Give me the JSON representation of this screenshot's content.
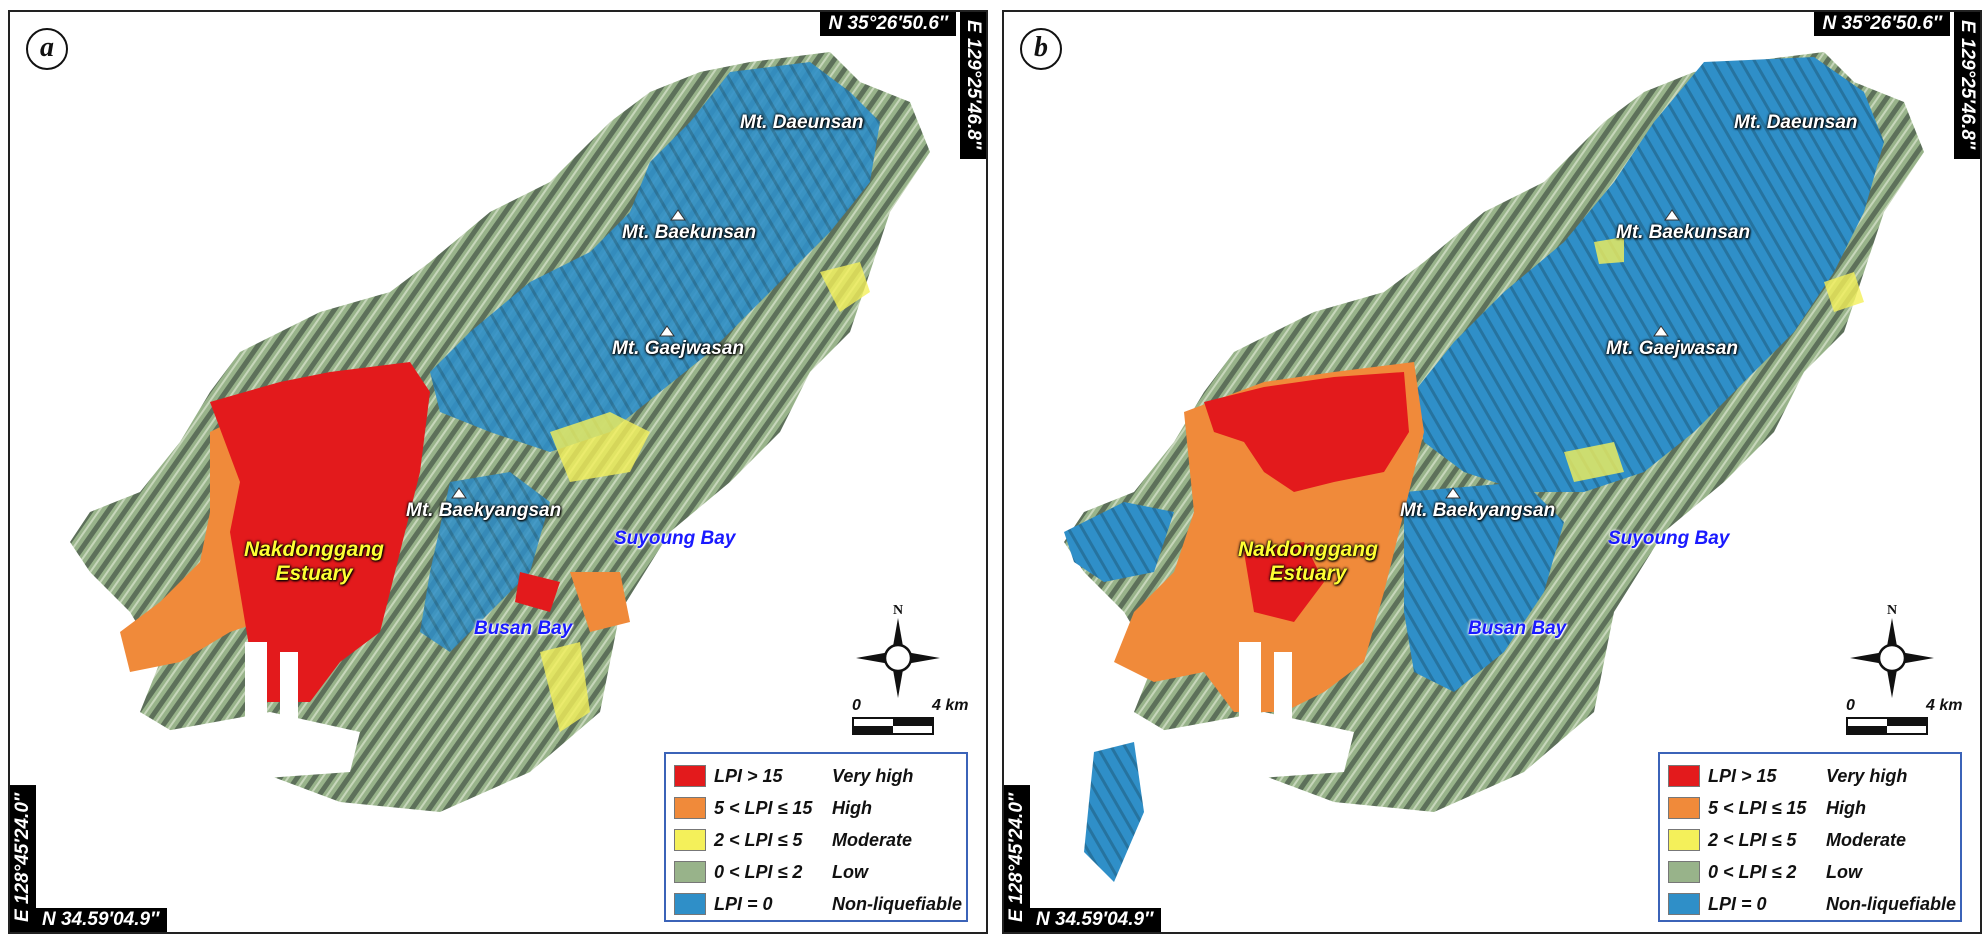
{
  "coordinates": {
    "top": "N 35°26′50.6″",
    "right": "E 129°25′46.8″",
    "left": "E 128°45′24.0″",
    "bottom": "N 34.59′04.9″"
  },
  "places": {
    "mt_daeunsan": "Mt. Daeunsan",
    "mt_baekunsan": "Mt. Baekunsan",
    "mt_gaejwasan": "Mt. Gaejwasan",
    "mt_baekyangsan": "Mt. Baekyangsan",
    "estuary_line1": "Nakdonggang",
    "estuary_line2": "Estuary",
    "suyoung_bay": "Suyoung Bay",
    "busan_bay": "Busan Bay"
  },
  "compass": {
    "north": "N"
  },
  "scale": {
    "start": "0",
    "end": "4 km"
  },
  "legend": [
    {
      "range": "LPI > 15",
      "class": "Very high",
      "color": "#e31a1c"
    },
    {
      "range": "5 < LPI ≤ 15",
      "class": "High",
      "color": "#f08a3a"
    },
    {
      "range": "2 < LPI ≤ 5",
      "class": "Moderate",
      "color": "#f4f05a"
    },
    {
      "range": "0 < LPI ≤ 2",
      "class": "Low",
      "color": "#98b38a"
    },
    {
      "range": "LPI = 0",
      "class": "Non-liquefiable",
      "color": "#2f8fc8"
    }
  ],
  "panels": [
    {
      "label": "a"
    },
    {
      "label": "b"
    }
  ],
  "colors": {
    "very_high": "#e31a1c",
    "high": "#f08a3a",
    "moderate": "#f4f05a",
    "low": "#98b38a",
    "non_liquefiable": "#2f8fc8",
    "hillshade": "#556b55"
  }
}
